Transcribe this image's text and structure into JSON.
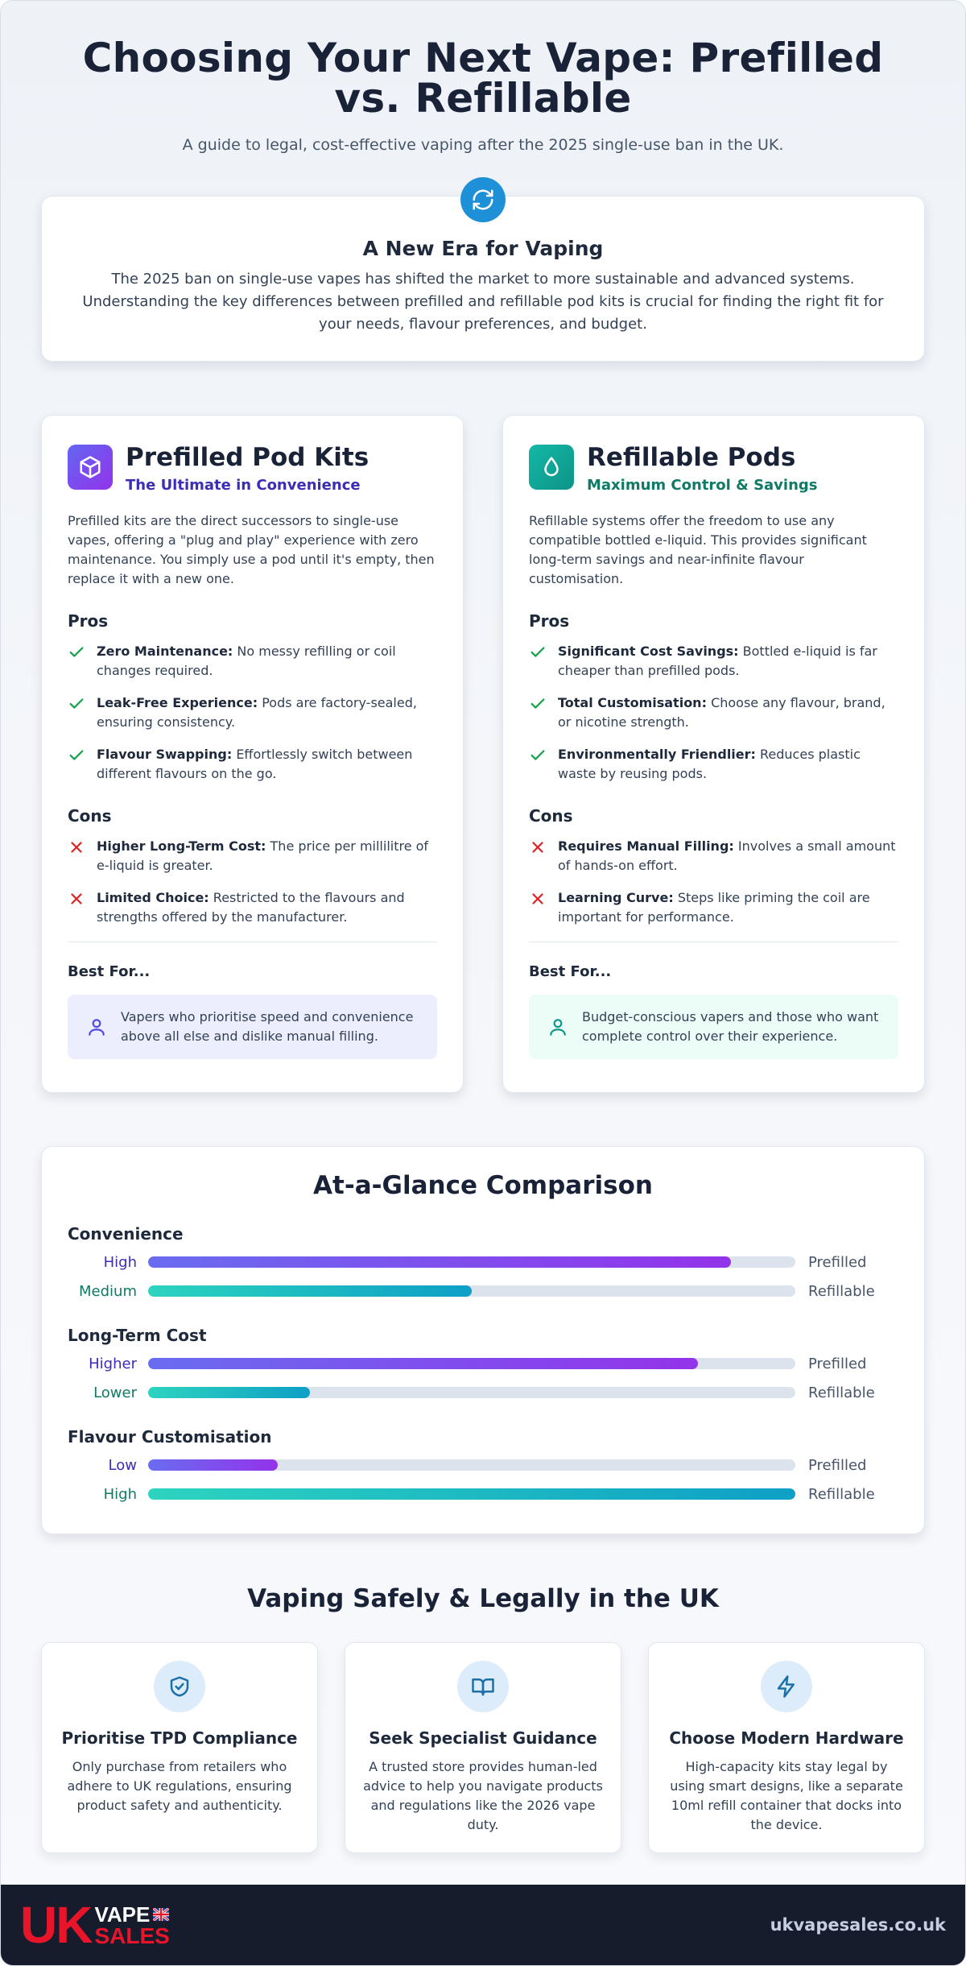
{
  "hero": {
    "title": "Choosing Your Next Vape: Prefilled vs. Refillable",
    "subtitle": "A guide to legal, cost-effective vaping after the 2025 single-use ban in the UK."
  },
  "era": {
    "icon": "refresh-icon",
    "title": "A New Era for Vaping",
    "body": "The 2025 ban on single-use vapes has shifted the market to more sustainable and advanced systems. Understanding the key differences between prefilled and refillable pod kits is crucial for finding the right fit for your needs, flavour preferences, and budget."
  },
  "cards": [
    {
      "icon": "cube-icon",
      "title": "Prefilled Pod Kits",
      "tagline": "The Ultimate in Convenience",
      "intro": "Prefilled kits are the direct successors to single-use vapes, offering a \"plug and play\" experience with zero maintenance. You simply use a pod until it's empty, then replace it with a new one.",
      "pros_heading": "Pros",
      "pros": [
        {
          "term": "Zero Maintenance:",
          "text": "No messy refilling or coil changes required."
        },
        {
          "term": "Leak-Free Experience:",
          "text": "Pods are factory-sealed, ensuring consistency."
        },
        {
          "term": "Flavour Swapping:",
          "text": "Effortlessly switch between different flavours on the go."
        }
      ],
      "cons_heading": "Cons",
      "cons": [
        {
          "term": "Higher Long-Term Cost:",
          "text": "The price per millilitre of e-liquid is greater."
        },
        {
          "term": "Limited Choice:",
          "text": "Restricted to the flavours and strengths offered by the manufacturer."
        }
      ],
      "best_heading": "Best For...",
      "best": "Vapers who prioritise speed and convenience above all else and dislike manual filling."
    },
    {
      "icon": "droplet-icon",
      "title": "Refillable Pods",
      "tagline": "Maximum Control & Savings",
      "intro": "Refillable systems offer the freedom to use any compatible bottled e-liquid. This provides significant long-term savings and near-infinite flavour customisation.",
      "pros_heading": "Pros",
      "pros": [
        {
          "term": "Significant Cost Savings:",
          "text": "Bottled e-liquid is far cheaper than prefilled pods."
        },
        {
          "term": "Total Customisation:",
          "text": "Choose any flavour, brand, or nicotine strength."
        },
        {
          "term": "Environmentally Friendlier:",
          "text": "Reduces plastic waste by reusing pods."
        }
      ],
      "cons_heading": "Cons",
      "cons": [
        {
          "term": "Requires Manual Filling:",
          "text": "Involves a small amount of hands-on effort."
        },
        {
          "term": "Learning Curve:",
          "text": "Steps like priming the coil are important for performance."
        }
      ],
      "best_heading": "Best For...",
      "best": "Budget-conscious vapers and those who want complete control over their experience."
    }
  ],
  "comparison": {
    "title": "At-a-Glance Comparison",
    "metrics": [
      {
        "name": "Convenience",
        "prefilled": {
          "level": "High",
          "fraction": 0.9,
          "label": "Prefilled"
        },
        "refillable": {
          "level": "Medium",
          "fraction": 0.5,
          "label": "Refillable"
        }
      },
      {
        "name": "Long-Term Cost",
        "prefilled": {
          "level": "Higher",
          "fraction": 0.85,
          "label": "Prefilled"
        },
        "refillable": {
          "level": "Lower",
          "fraction": 0.25,
          "label": "Refillable"
        }
      },
      {
        "name": "Flavour Customisation",
        "prefilled": {
          "level": "Low",
          "fraction": 0.2,
          "label": "Prefilled"
        },
        "refillable": {
          "level": "High",
          "fraction": 1.0,
          "label": "Refillable"
        }
      }
    ]
  },
  "safety": {
    "title": "Vaping Safely & Legally in the UK",
    "tips": [
      {
        "icon": "shield-check-icon",
        "title": "Prioritise TPD Compliance",
        "body": "Only purchase from retailers who adhere to UK regulations, ensuring product safety and authenticity."
      },
      {
        "icon": "book-open-icon",
        "title": "Seek Specialist Guidance",
        "body": "A trusted store provides human-led advice to help you navigate products and regulations like the 2026 vape duty."
      },
      {
        "icon": "lightning-icon",
        "title": "Choose Modern Hardware",
        "body": "High-capacity kits stay legal by using smart designs, like a separate 10ml refill container that docks into the device."
      }
    ]
  },
  "footer": {
    "logo_uk": "UK",
    "logo_vape": "VAPE",
    "logo_sales": "SALES",
    "url": "ukvapesales.co.uk"
  },
  "colors": {
    "prefilled_accent": "#3b2db5",
    "refillable_accent": "#0f7a66",
    "check": "#16a34a",
    "cross": "#dc2626"
  }
}
